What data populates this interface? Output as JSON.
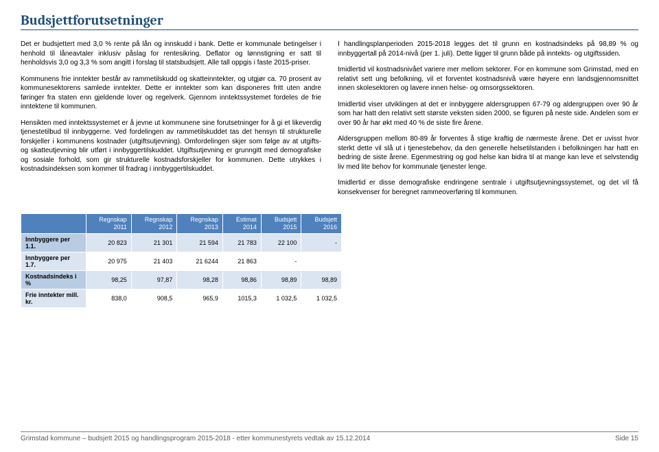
{
  "title": "Budsjettforutsetninger",
  "left": {
    "p1": "Det er budsjettert med 3,0 % rente på lån og innskudd i bank. Dette er kommunale betingelser i henhold til låneavtaler inklusiv påslag for rentesikring. Deflator og lønnstigning er satt til henholdsvis 3,0 og 3,3 % som angitt i forslag til statsbudsjett. Alle tall oppgis i faste 2015-priser.",
    "p2": "Kommunens frie inntekter består av rammetilskudd og skatteinntekter, og utgjør ca. 70 prosent av kommunesektorens samlede inntekter. Dette er inntekter som kan disponeres fritt uten andre føringer fra staten enn gjeldende lover og regelverk. Gjennom inntektssystemet fordeles de frie inntektene til kommunen.",
    "p3": "Hensikten med inntektssystemet er å jevne ut kommunene sine forutsetninger for å gi et likeverdig tjenestetilbud til innbyggerne. Ved fordelingen av rammetilskuddet tas det hensyn til strukturelle forskjeller i kommunens kostnader (utgiftsutjevning). Omfordelingen skjer som følge av at utgifts- og skatteutjevning blir utført i innbyggertilskuddet. Utgiftsutjevning er grunngitt med demografiske og sosiale forhold, som gir strukturelle kostnadsforskjeller for kommunen. Dette utrykkes i kostnadsindeksen som kommer til fradrag i innbyggertilskuddet."
  },
  "right": {
    "p1": "I handlingsplanperioden 2015-2018 legges det til grunn en kostnadsindeks på 98,89 % og innbyggertall på 2014-nivå (per 1. juli). Dette ligger til grunn både på inntekts- og utgiftssiden.",
    "p2": "Imidlertid vil kostnadsnivået variere mer mellom sektorer. For en kommune som Grimstad, med en relativt sett ung befolkning, vil et forventet kostnadsnivå være høyere enn landsgjennomsnittet innen skolesektoren og lavere innen helse- og omsorgssektoren.",
    "p3": "Imidlertid viser utviklingen at det er innbyggere aldersgruppen 67-79 og aldergruppen over 90 år som har hatt den relativt sett største veksten siden 2000, se figuren på neste side. Andelen som er over 90 år har økt med 40 % de siste fire årene.",
    "p4": "Aldersgruppen mellom 80-89 år forventes å stige kraftig de nærmeste årene. Det er uvisst hvor sterkt dette vil slå ut i tjenestebehov, da den generelle helsetilstanden i befolkningen har hatt en bedring de siste årene. Egenmestring og god helse kan bidra til at mange kan leve et selvstendig liv med lite behov for kommunale tjenester lenge.",
    "p5": "Imidlertid er disse demografiske endringene sentrale i utgiftsutjevningssystemet, og det vil få konsekvenser for beregnet rammeoverføring til kommunen."
  },
  "table": {
    "headers": [
      "",
      "Regnskap 2011",
      "Regnskap 2012",
      "Regnskap 2013",
      "Estimat 2014",
      "Budsjett 2015",
      "Budsjett 2016"
    ],
    "rows": [
      [
        "Innbyggere per 1.1.",
        "20 823",
        "21 301",
        "21 594",
        "21 783",
        "22 100",
        "-"
      ],
      [
        "Innbyggere per 1.7.",
        "20 975",
        "21 403",
        "21 6244",
        "21 863",
        "-",
        ""
      ],
      [
        "Kostnadsindeks i %",
        "98,25",
        "97,87",
        "98,28",
        "98,86",
        "98,89",
        "98,89"
      ],
      [
        "Frie inntekter mill. kr.",
        "838,0",
        "908,5",
        "965,9",
        "1015,3",
        "1 032,5",
        "1 032,5"
      ]
    ],
    "header_bg": "#4f81bd",
    "row_odd_bg": "#dbe5f1",
    "row_even_bg": "#ffffff",
    "rowhead_bg": "#b8cce4"
  },
  "footer": {
    "left": "Grimstad kommune – budsjett 2015 og handlingsprogram 2015-2018 - etter kommunestyrets vedtak av 15.12.2014",
    "right": "Side 15"
  }
}
